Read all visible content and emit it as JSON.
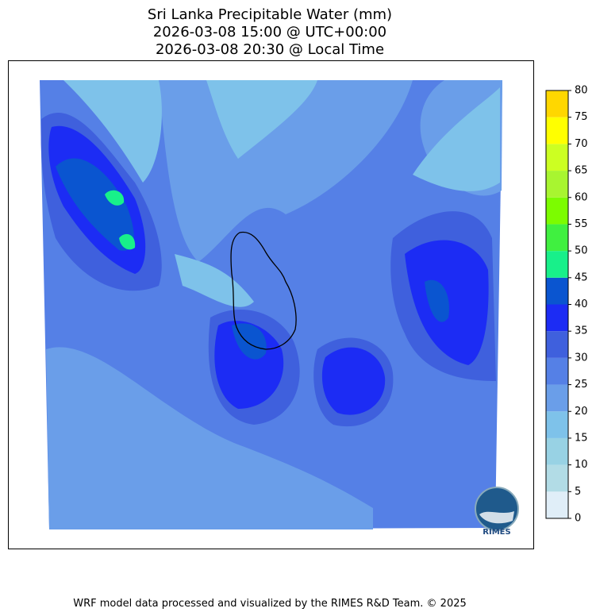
{
  "header": {
    "title_lines": [
      "Sri Lanka Precipitable Water (mm)",
      "2026-03-08 15:00 @ UTC+00:00",
      "2026-03-08 20:30 @ Local Time"
    ]
  },
  "colorbar": {
    "levels": [
      0,
      5,
      10,
      15,
      20,
      25,
      30,
      35,
      40,
      45,
      50,
      55,
      60,
      65,
      70,
      75,
      80
    ],
    "colors": [
      "#e0eef8",
      "#b2dce6",
      "#98d2e4",
      "#7ec2ea",
      "#6a9ee9",
      "#5580e6",
      "#3f60dd",
      "#1c2cf4",
      "#0a55d0",
      "#18f08a",
      "#40f040",
      "#7cfc00",
      "#a8f530",
      "#ccff22",
      "#ffff00",
      "#ffd700"
    ]
  },
  "logo": {
    "text": "RIMES"
  },
  "footer": "WRF model data processed and visualized by the RIMES R&D Team. © 2025"
}
